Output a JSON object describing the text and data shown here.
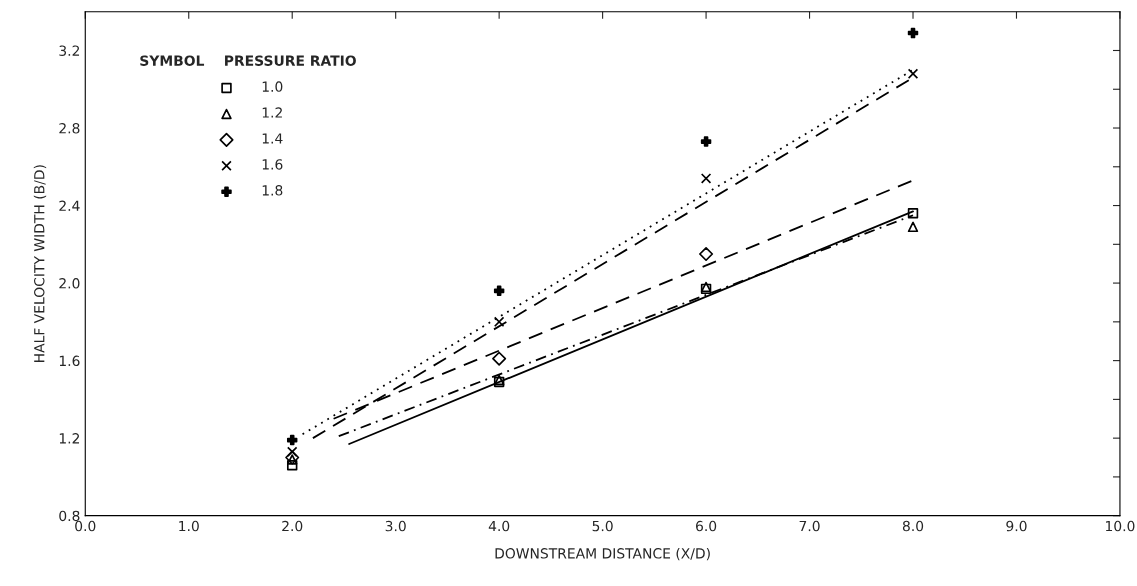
{
  "chart_data": {
    "type": "scatter",
    "xlabel": "DOWNSTREAM DISTANCE (X/D)",
    "ylabel": "HALF VELOCITY WIDTH (B/D)",
    "legend_title": "SYMBOL    PRESSURE RATIO",
    "legend": "top left",
    "grid": false,
    "xlim": [
      0,
      10
    ],
    "ylim": [
      0.8,
      3.4
    ],
    "xticks": [
      {
        "value": 0,
        "label": "0.0"
      },
      {
        "value": 1,
        "label": "1.0"
      },
      {
        "value": 2,
        "label": "2.0"
      },
      {
        "value": 3,
        "label": "3.0"
      },
      {
        "value": 4,
        "label": "4.0"
      },
      {
        "value": 5,
        "label": "5.0"
      },
      {
        "value": 6,
        "label": "6.0"
      },
      {
        "value": 7,
        "label": "7.0"
      },
      {
        "value": 8,
        "label": "8.0"
      },
      {
        "value": 9,
        "label": "9.0"
      },
      {
        "value": 10,
        "label": "10.0"
      }
    ],
    "yticks": [
      0.8,
      {
        "value": 1.0,
        "label": null
      },
      1.2,
      {
        "value": 1.4,
        "label": null
      },
      1.6,
      {
        "value": 1.8,
        "label": null
      },
      {
        "value": 2.0,
        "label": "2.0"
      },
      {
        "value": 2.2,
        "label": null
      },
      2.4,
      {
        "value": 2.6,
        "label": null
      },
      2.8,
      {
        "value": 3.0,
        "label": null
      },
      3.2
    ],
    "x": [
      2,
      4,
      6,
      8
    ],
    "series": [
      {
        "name": "1.0",
        "color": "#000000",
        "marker": "square",
        "values": [
          1.06,
          1.49,
          1.97,
          2.36
        ]
      },
      {
        "name": "1.2",
        "color": "#000000",
        "marker": "triangle",
        "values": [
          1.09,
          1.5,
          1.98,
          2.29
        ]
      },
      {
        "name": "1.4",
        "color": "#000000",
        "marker": "diamond",
        "values": [
          1.1,
          1.61,
          2.15,
          null
        ]
      },
      {
        "name": "1.6",
        "color": "#000000",
        "marker": "cross",
        "values": [
          1.13,
          1.8,
          2.54,
          3.08
        ]
      },
      {
        "name": "1.8",
        "color": "#000000",
        "marker": "plus",
        "values": [
          1.19,
          1.96,
          2.73,
          3.29
        ]
      },
      {
        "type": "line",
        "color": "#000000",
        "line_style": "solid",
        "x": [
          2.55,
          8
        ],
        "values": [
          1.17,
          2.37
        ]
      },
      {
        "type": "line",
        "color": "#000000",
        "line_style": "dashdot",
        "x": [
          2.45,
          8
        ],
        "values": [
          1.21,
          2.35
        ]
      },
      {
        "type": "line",
        "color": "#000000",
        "line_style": "dashed",
        "x": [
          2.4,
          8
        ],
        "values": [
          1.3,
          2.53
        ]
      },
      {
        "type": "line",
        "color": "#000000",
        "line_style": "dashed",
        "x": [
          2.2,
          8
        ],
        "values": [
          1.2,
          3.06
        ]
      },
      {
        "type": "line",
        "color": "#000000",
        "line_style": "dotted",
        "x": [
          2.1,
          8
        ],
        "values": [
          1.22,
          3.1
        ]
      }
    ]
  }
}
